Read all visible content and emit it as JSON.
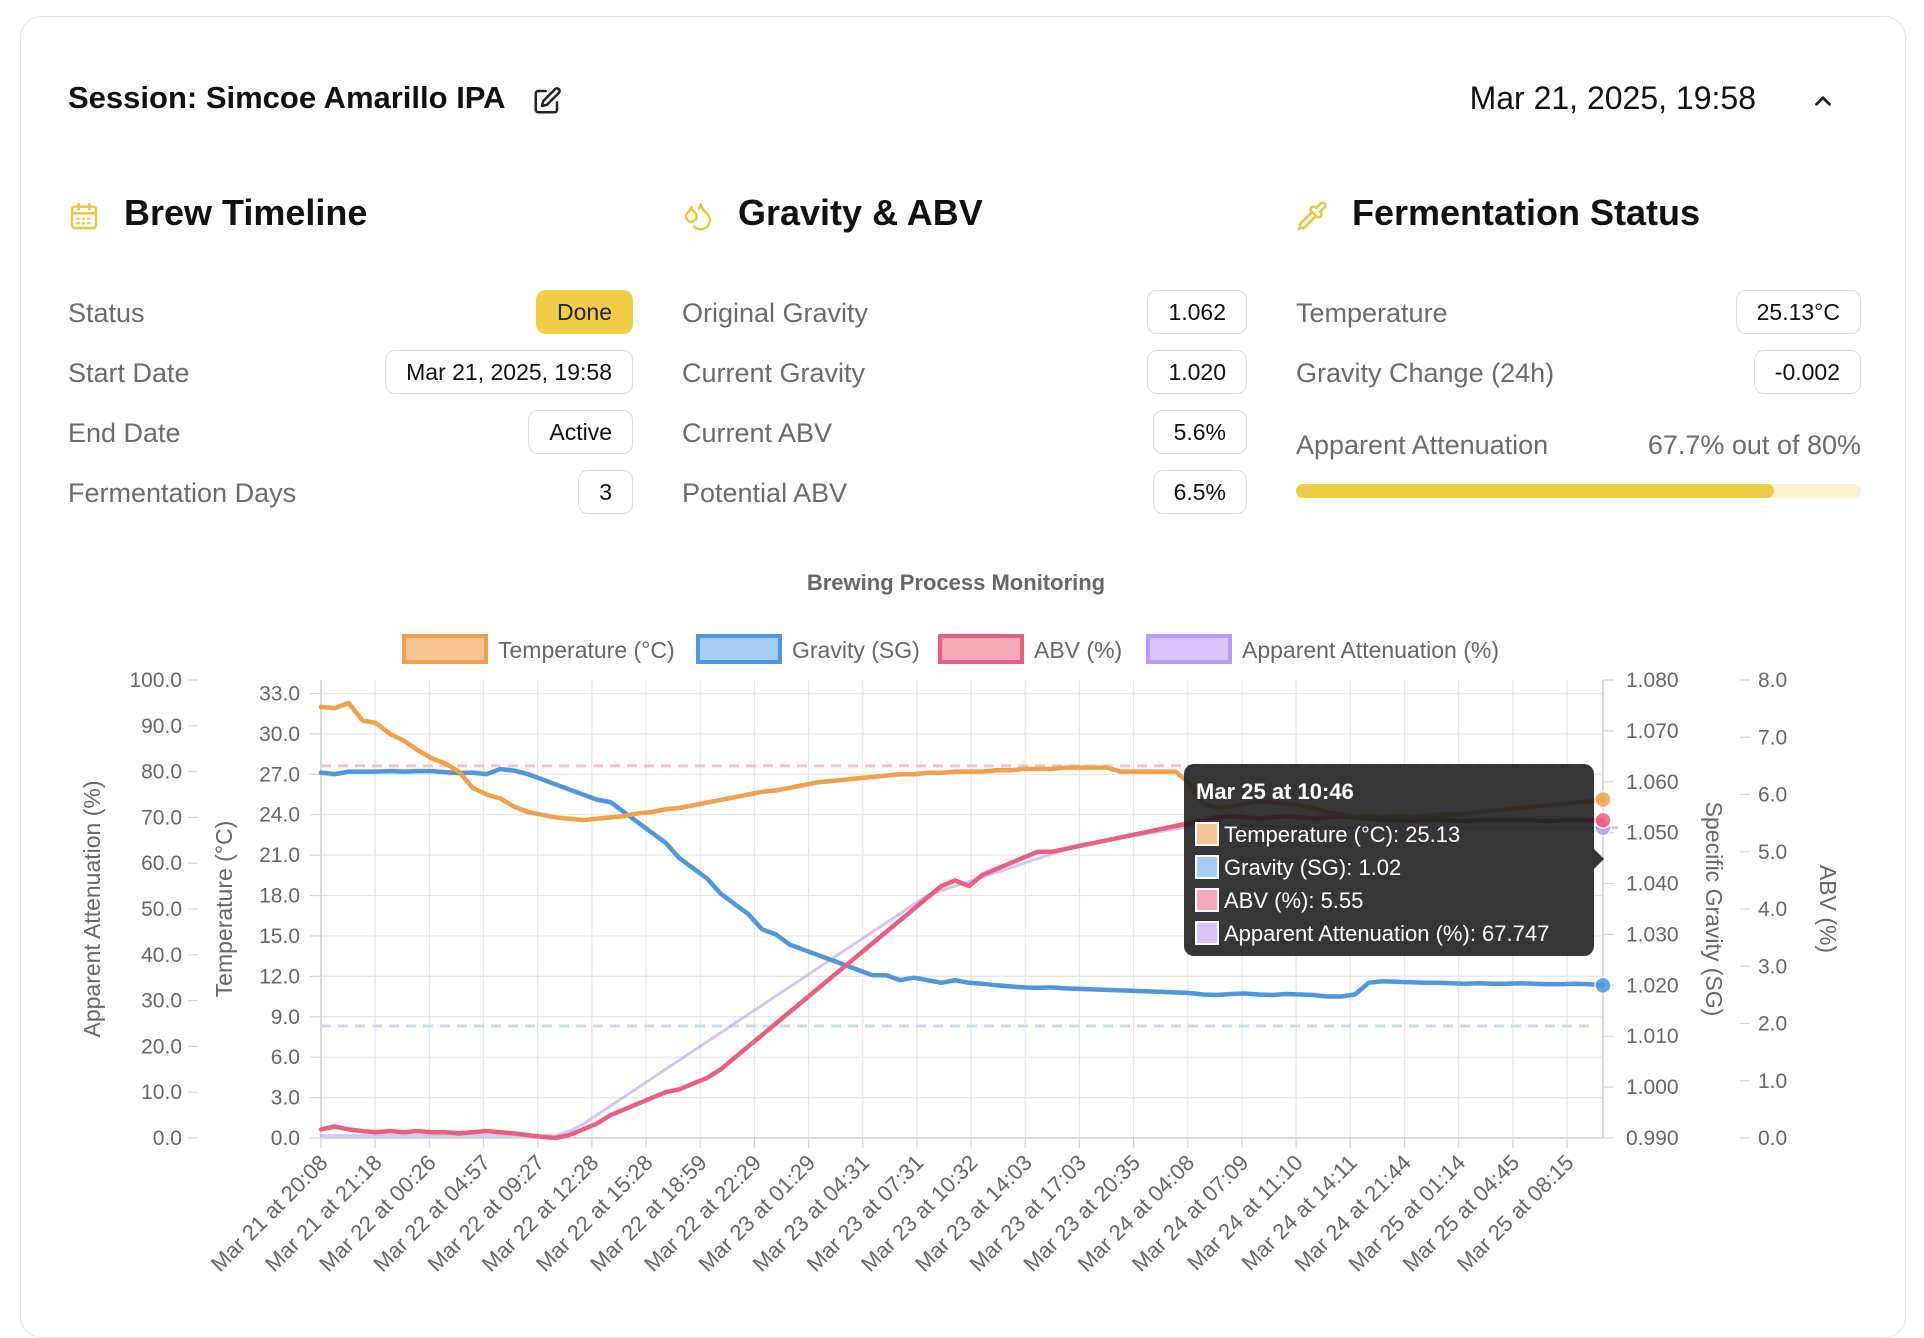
{
  "session": {
    "title": "Session: Simcoe Amarillo IPA",
    "datetime": "Mar 21, 2025, 19:58"
  },
  "brew_timeline": {
    "heading": "Brew Timeline",
    "rows": [
      {
        "label": "Status",
        "value": "Done"
      },
      {
        "label": "Start Date",
        "value": "Mar 21, 2025, 19:58"
      },
      {
        "label": "End Date",
        "value": "Active"
      },
      {
        "label": "Fermentation Days",
        "value": "3"
      }
    ]
  },
  "gravity_abv": {
    "heading": "Gravity & ABV",
    "rows": [
      {
        "label": "Original Gravity",
        "value": "1.062"
      },
      {
        "label": "Current Gravity",
        "value": "1.020"
      },
      {
        "label": "Current ABV",
        "value": "5.6%"
      },
      {
        "label": "Potential ABV",
        "value": "6.5%"
      }
    ]
  },
  "fermentation_status": {
    "heading": "Fermentation Status",
    "rows": [
      {
        "label": "Temperature",
        "value": "25.13°C"
      },
      {
        "label": "Gravity Change (24h)",
        "value": "-0.002"
      }
    ],
    "attenuation_label": "Apparent Attenuation",
    "attenuation_text": "67.7% out of 80%",
    "attenuation_fraction": 0.846
  },
  "colors": {
    "accent": "#f0cd44",
    "temperature": "#f0a04b",
    "gravity": "#4f96e0",
    "abv": "#e9607e",
    "attenuation": "#b79cf5"
  },
  "chart_data": {
    "type": "line",
    "title": "Brewing Process Monitoring",
    "legend_position": "top",
    "grid": true,
    "x_tick_labels": [
      "Mar 21 at 20:08",
      "Mar 21 at 21:18",
      "Mar 22 at 00:26",
      "Mar 22 at 04:57",
      "Mar 22 at 09:27",
      "Mar 22 at 12:28",
      "Mar 22 at 15:28",
      "Mar 22 at 18:59",
      "Mar 22 at 22:29",
      "Mar 23 at 01:29",
      "Mar 23 at 04:31",
      "Mar 23 at 07:31",
      "Mar 23 at 10:32",
      "Mar 23 at 14:03",
      "Mar 23 at 17:03",
      "Mar 23 at 20:35",
      "Mar 24 at 04:08",
      "Mar 24 at 07:09",
      "Mar 24 at 11:10",
      "Mar 24 at 14:11",
      "Mar 24 at 21:44",
      "Mar 25 at 01:14",
      "Mar 25 at 04:45",
      "Mar 25 at 08:15"
    ],
    "axes": {
      "left_outer": {
        "label": "Apparent Attenuation (%)",
        "range": [
          0,
          100
        ],
        "ticks": [
          "100.0",
          "90.0",
          "80.0",
          "70.0",
          "60.0",
          "50.0",
          "40.0",
          "30.0",
          "20.0",
          "10.0",
          "0.0"
        ]
      },
      "left_inner": {
        "label": "Temperature (°C)",
        "range": [
          0,
          34
        ],
        "ticks": [
          "33.0",
          "30.0",
          "27.0",
          "24.0",
          "21.0",
          "18.0",
          "15.0",
          "12.0",
          "9.0",
          "6.0",
          "3.0",
          "0.0"
        ]
      },
      "right_inner": {
        "label": "Specific Gravity (SG)",
        "range": [
          0.99,
          1.08
        ],
        "ticks": [
          "1.080",
          "1.070",
          "1.060",
          "1.050",
          "1.040",
          "1.030",
          "1.020",
          "1.010",
          "1.000",
          "0.990"
        ]
      },
      "right_outer": {
        "label": "ABV (%)",
        "range": [
          0,
          8
        ],
        "ticks": [
          "8.0",
          "7.0",
          "6.0",
          "5.0",
          "4.0",
          "3.0",
          "2.0",
          "1.0",
          "0.0"
        ]
      }
    },
    "reference_lines": [
      {
        "series": "ABV (%)",
        "value": 6.5
      },
      {
        "series": "Gravity (SG)",
        "value": 1.012
      }
    ],
    "series": [
      {
        "name": "Temperature (°C)",
        "axis": "left_inner",
        "values": [
          32.0,
          31.9,
          32.3,
          31.0,
          30.8,
          30.0,
          29.5,
          28.8,
          28.2,
          27.8,
          27.2,
          26.0,
          25.5,
          25.2,
          24.6,
          24.2,
          24.0,
          23.8,
          23.7,
          23.6,
          23.7,
          23.8,
          23.9,
          24.1,
          24.2,
          24.4,
          24.5,
          24.7,
          24.9,
          25.1,
          25.3,
          25.5,
          25.7,
          25.8,
          26.0,
          26.2,
          26.4,
          26.5,
          26.6,
          26.7,
          26.8,
          26.9,
          27.0,
          27.0,
          27.1,
          27.1,
          27.2,
          27.2,
          27.2,
          27.3,
          27.3,
          27.4,
          27.4,
          27.4,
          27.5,
          27.5,
          27.5,
          27.5,
          27.2,
          27.2,
          27.2,
          27.2,
          27.2,
          26.3,
          24.8,
          24.5,
          24.6,
          24.8,
          25.0,
          24.9,
          24.8,
          24.7,
          24.5,
          24.2,
          24.0,
          23.8,
          23.9,
          23.8,
          23.9,
          23.8,
          23.9,
          24.0,
          24.0,
          24.1,
          24.2,
          24.3,
          24.4,
          24.5,
          24.6,
          24.7,
          24.8,
          24.9,
          25.0,
          25.13
        ]
      },
      {
        "name": "Gravity (SG)",
        "axis": "right_inner",
        "values": [
          1.0618,
          1.0615,
          1.062,
          1.062,
          1.062,
          1.0621,
          1.062,
          1.0621,
          1.0621,
          1.0619,
          1.0617,
          1.0618,
          1.0615,
          1.0625,
          1.0622,
          1.0615,
          1.0605,
          1.0595,
          1.0585,
          1.0575,
          1.0565,
          1.056,
          1.054,
          1.052,
          1.05,
          1.048,
          1.045,
          1.043,
          1.041,
          1.038,
          1.036,
          1.034,
          1.031,
          1.03,
          1.028,
          1.027,
          1.026,
          1.025,
          1.024,
          1.023,
          1.022,
          1.022,
          1.021,
          1.0215,
          1.021,
          1.0205,
          1.021,
          1.0205,
          1.0203,
          1.02,
          1.0198,
          1.0196,
          1.0195,
          1.0196,
          1.0194,
          1.0193,
          1.0192,
          1.0191,
          1.019,
          1.0189,
          1.0188,
          1.0187,
          1.0186,
          1.0185,
          1.0182,
          1.0181,
          1.0183,
          1.0184,
          1.0182,
          1.0181,
          1.0183,
          1.0182,
          1.0181,
          1.0178,
          1.0178,
          1.0182,
          1.0205,
          1.0208,
          1.0207,
          1.0206,
          1.0205,
          1.0205,
          1.0204,
          1.0203,
          1.0204,
          1.0203,
          1.0203,
          1.0204,
          1.0203,
          1.0202,
          1.0202,
          1.0203,
          1.0202,
          1.02
        ]
      },
      {
        "name": "ABV (%)",
        "axis": "right_outer",
        "values": [
          0.15,
          0.2,
          0.15,
          0.12,
          0.1,
          0.12,
          0.1,
          0.12,
          0.1,
          0.1,
          0.08,
          0.1,
          0.12,
          0.1,
          0.08,
          0.05,
          0.02,
          0.0,
          0.05,
          0.15,
          0.25,
          0.4,
          0.5,
          0.6,
          0.7,
          0.8,
          0.85,
          0.95,
          1.05,
          1.2,
          1.4,
          1.6,
          1.8,
          2.0,
          2.2,
          2.4,
          2.6,
          2.8,
          3.0,
          3.2,
          3.4,
          3.6,
          3.8,
          4.0,
          4.2,
          4.4,
          4.5,
          4.4,
          4.6,
          4.7,
          4.8,
          4.9,
          5.0,
          5.0,
          5.05,
          5.1,
          5.15,
          5.2,
          5.25,
          5.3,
          5.35,
          5.4,
          5.45,
          5.5,
          5.55,
          5.6,
          5.62,
          5.6,
          5.58,
          5.6,
          5.62,
          5.6,
          5.58,
          5.6,
          5.62,
          5.6,
          5.58,
          5.56,
          5.55,
          5.54,
          5.55,
          5.56,
          5.55,
          5.54,
          5.55,
          5.56,
          5.55,
          5.56,
          5.55,
          5.54,
          5.55,
          5.56,
          5.55,
          5.55
        ]
      },
      {
        "name": "Apparent Attenuation (%)",
        "axis": "left_outer",
        "values": [
          0.5,
          0.5,
          0.5,
          0.5,
          0.5,
          0.5,
          0.5,
          0.5,
          0.5,
          0.5,
          0.5,
          0.5,
          0.5,
          0.5,
          0.5,
          0.5,
          0.5,
          0.5,
          1.5,
          3,
          5,
          7,
          9,
          11,
          13,
          15,
          17,
          19,
          21,
          23,
          25,
          27,
          29,
          31,
          33,
          35,
          37,
          39,
          41,
          43,
          45,
          47,
          49,
          51,
          53,
          54,
          55,
          56,
          57,
          58,
          59,
          60,
          61,
          62,
          63,
          64,
          64.5,
          65,
          65.5,
          66,
          66.5,
          67,
          67.5,
          68,
          68.2,
          68.4,
          68.3,
          68.2,
          68.1,
          68.0,
          67.9,
          67.8,
          67.8,
          67.8,
          67.7,
          67.7,
          67.7,
          67.7,
          67.7,
          67.7,
          67.7,
          67.7,
          67.7,
          67.7,
          67.7,
          67.7,
          67.7,
          67.7,
          67.7,
          67.7,
          67.7,
          67.7,
          67.7,
          67.7,
          67.747
        ]
      }
    ],
    "tooltip": {
      "title": "Mar 25 at 10:46",
      "lines": [
        "Temperature (°C): 25.13",
        "Gravity (SG): 1.02",
        "ABV (%): 5.55",
        "Apparent Attenuation (%): 67.747"
      ]
    }
  }
}
